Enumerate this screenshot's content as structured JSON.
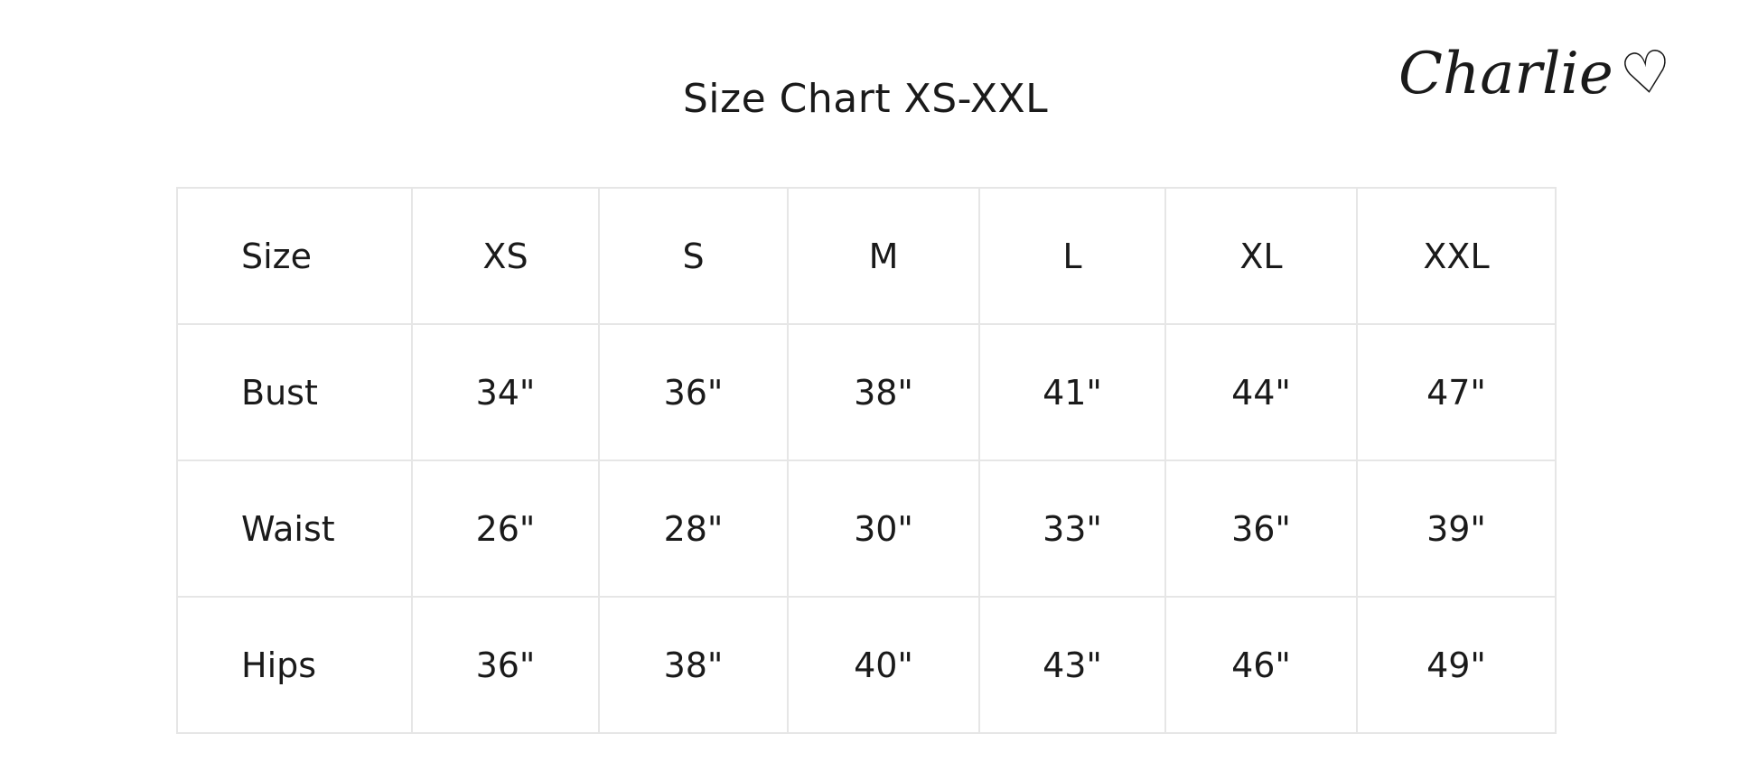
{
  "title": "Size Chart XS-XXL",
  "logo": {
    "text": "Charlie",
    "icon": "heart-icon"
  },
  "table": {
    "rows": [
      [
        "Size",
        "XS",
        "S",
        "M",
        "L",
        "XL",
        "XXL"
      ],
      [
        "Bust",
        "34\"",
        "36\"",
        "38\"",
        "41\"",
        "44\"",
        "47\""
      ],
      [
        "Waist",
        "26\"",
        "28\"",
        "30\"",
        "33\"",
        "36\"",
        "39\""
      ],
      [
        "Hips",
        "36\"",
        "38\"",
        "40\"",
        "43\"",
        "46\"",
        "49\""
      ]
    ]
  },
  "colors": {
    "text": "#1a1a1a",
    "border": "#e6e6e6"
  }
}
